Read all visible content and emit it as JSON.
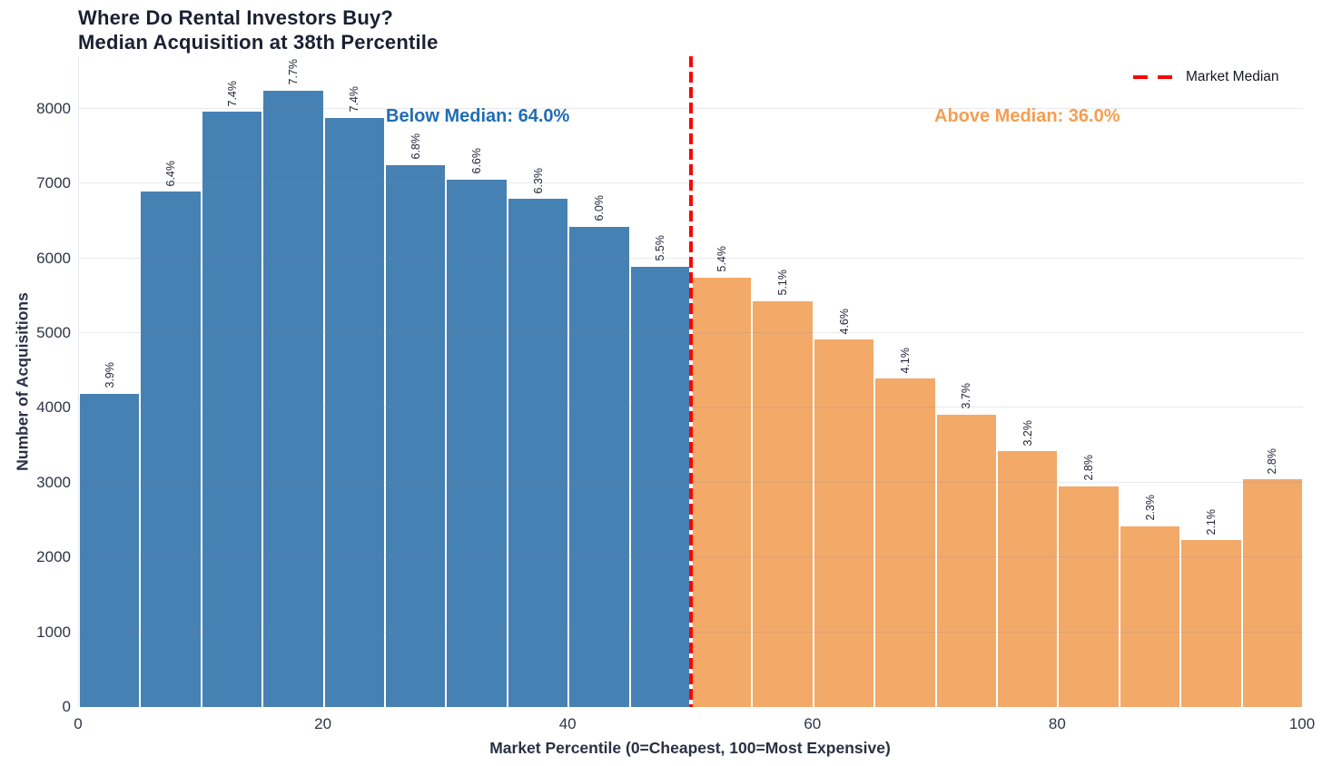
{
  "chart_data": {
    "type": "bar",
    "title_line1": "Where Do Rental Investors Buy?",
    "title_line2": "Median Acquisition at 38th Percentile",
    "xlabel": "Market Percentile (0=Cheapest, 100=Most Expensive)",
    "ylabel": "Number of Acquisitions",
    "bin_width": 5,
    "bin_starts": [
      0,
      5,
      10,
      15,
      20,
      25,
      30,
      35,
      40,
      45,
      50,
      55,
      60,
      65,
      70,
      75,
      80,
      85,
      90,
      95
    ],
    "values": [
      4190,
      6890,
      7960,
      8240,
      7880,
      7250,
      7050,
      6790,
      6420,
      5890,
      5740,
      5430,
      4910,
      4390,
      3910,
      3420,
      2950,
      2420,
      2230,
      3040
    ],
    "bar_labels": [
      "3.9%",
      "6.4%",
      "7.4%",
      "7.7%",
      "7.4%",
      "6.8%",
      "6.6%",
      "6.3%",
      "6.0%",
      "5.5%",
      "5.4%",
      "5.1%",
      "4.6%",
      "4.1%",
      "3.7%",
      "3.2%",
      "2.8%",
      "2.3%",
      "2.1%",
      "2.8%"
    ],
    "x_ticks": [
      0,
      20,
      40,
      60,
      80,
      100
    ],
    "y_ticks": [
      0,
      1000,
      2000,
      3000,
      4000,
      5000,
      6000,
      7000,
      8000
    ],
    "xlim": [
      0,
      100
    ],
    "ylim": [
      0,
      8700
    ],
    "grid": "horizontal",
    "median_line_x": 50,
    "legend_label": "Market Median",
    "legend_position": "top-right",
    "annotations": {
      "below_median": "Below Median: 64.0%",
      "above_median": "Above Median: 36.0%"
    },
    "colors": {
      "below_bar": "#4681b4",
      "above_bar": "#f3a968",
      "median_line": "#ff0000",
      "below_text": "#1f6db4",
      "above_text": "#f59e52"
    }
  }
}
